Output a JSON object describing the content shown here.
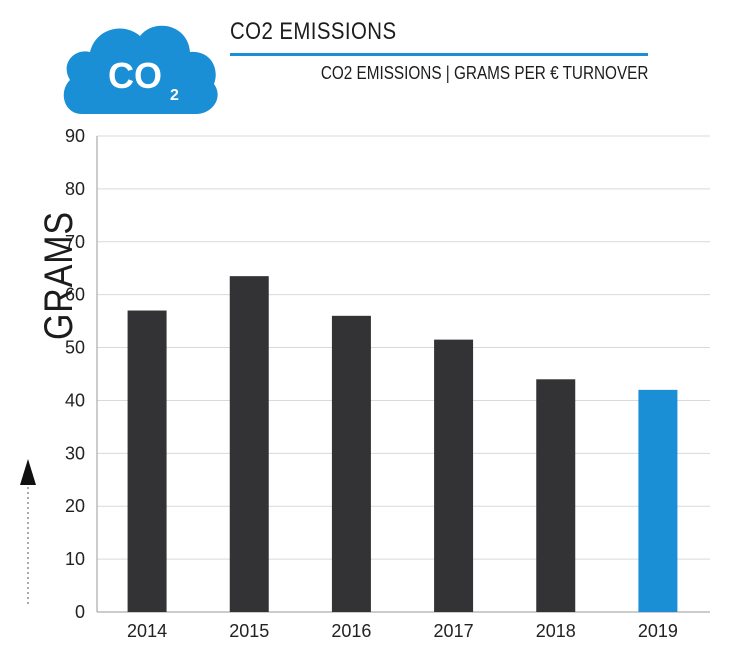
{
  "logo": {
    "text": "CO",
    "sub": "2",
    "color": "#1a8fd6"
  },
  "header": {
    "title": "CO2 EMISSIONS",
    "subtitle": "CO2 EMISSIONS | GRAMS PER € TURNOVER",
    "accent_color": "#1a8fd6"
  },
  "chart_data": {
    "type": "bar",
    "title": "CO2 EMISSIONS",
    "subtitle": "CO2 EMISSIONS | GRAMS PER € TURNOVER",
    "xlabel": "",
    "ylabel": "GRAMS",
    "categories": [
      "2014",
      "2015",
      "2016",
      "2017",
      "2018",
      "2019"
    ],
    "values": [
      57,
      63.5,
      56,
      51.5,
      44,
      42
    ],
    "colors": [
      "#333335",
      "#333335",
      "#333335",
      "#333335",
      "#333335",
      "#1a8fd6"
    ],
    "ylim": [
      0,
      90
    ],
    "yticks": [
      0,
      10,
      20,
      30,
      40,
      50,
      60,
      70,
      80,
      90
    ],
    "grid": true,
    "legend": "none"
  }
}
